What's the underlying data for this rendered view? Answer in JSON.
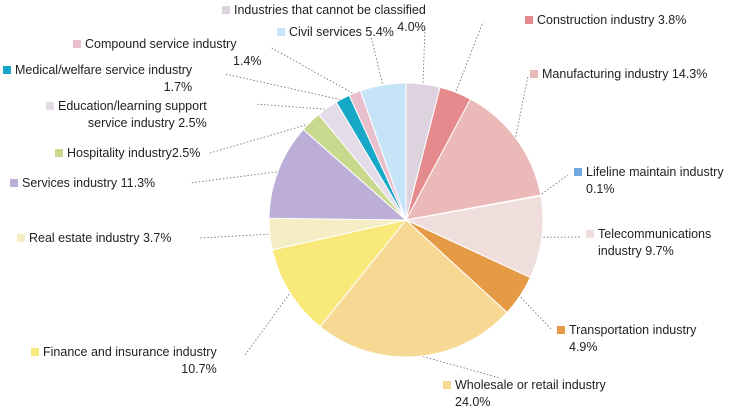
{
  "chart_data": {
    "type": "pie",
    "title": "",
    "slices": [
      {
        "label": "Industries that cannot be classified",
        "percent_label": "4.0%",
        "value": 4.0,
        "color": "#ddd3df"
      },
      {
        "label": "Construction industry",
        "percent_label": "3.8%",
        "value": 3.8,
        "color": "#e58b8d"
      },
      {
        "label": "Manufacturing industry",
        "percent_label": "14.3%",
        "value": 14.3,
        "color": "#ebbab8"
      },
      {
        "label": "Lifeline maintain industry",
        "percent_label": "0.1%",
        "value": 0.1,
        "color": "#6ea8de"
      },
      {
        "label": "Telecommunications industry",
        "percent_label": "9.7%",
        "value": 9.7,
        "color": "#f0dedd"
      },
      {
        "label": "Transportation industry",
        "percent_label": "4.9%",
        "value": 4.9,
        "color": "#e59b46"
      },
      {
        "label": "Wholesale or retail industry",
        "percent_label": "24.0%",
        "value": 24.0,
        "color": "#f7d994"
      },
      {
        "label": "Finance and insurance industry",
        "percent_label": "10.7%",
        "value": 10.7,
        "color": "#f9e87a"
      },
      {
        "label": "Real estate industry",
        "percent_label": "3.7%",
        "value": 3.7,
        "color": "#f5eec4"
      },
      {
        "label": "Services industry",
        "percent_label": "11.3%",
        "value": 11.3,
        "color": "#bcaed6"
      },
      {
        "label": "Hospitality industry",
        "percent_label": "2.5%",
        "value": 2.5,
        "color": "#c8d88c"
      },
      {
        "label": "Education/learning support service industry",
        "percent_label": "2.5%",
        "value": 2.5,
        "color": "#e4dce8"
      },
      {
        "label": "Medical/welfare service industry",
        "percent_label": "1.7%",
        "value": 1.7,
        "color": "#17a8c8"
      },
      {
        "label": "Compound service industry",
        "percent_label": "1.4%",
        "value": 1.4,
        "color": "#e9bfcd"
      },
      {
        "label": "Civil services",
        "percent_label": "5.4%",
        "value": 5.4,
        "color": "#c6e4f7"
      }
    ],
    "labels": {
      "unclassified": {
        "text": "Industries that cannot be classified",
        "pct": "4.0%"
      },
      "construction": {
        "text": "Construction industry 3.8%"
      },
      "manufacturing": {
        "text": "Manufacturing industry 14.3%"
      },
      "lifeline": {
        "text": "Lifeline maintain industry",
        "pct": "0.1%"
      },
      "telecom": {
        "line1": "Telecommunications",
        "line2": "industry  9.7%"
      },
      "transport": {
        "text": "Transportation industry",
        "pct": "4.9%"
      },
      "wholesale": {
        "text": "Wholesale or retail industry",
        "pct": "24.0%"
      },
      "finance": {
        "text": "Finance and insurance industry",
        "pct": "10.7%"
      },
      "realestate": {
        "text": "Real estate industry 3.7%"
      },
      "services": {
        "text": "Services industry 11.3%"
      },
      "hospitality": {
        "text": "Hospitality industry2.5%"
      },
      "education": {
        "line1": "Education/learning support",
        "line2": "service industry 2.5%"
      },
      "medical": {
        "text": "Medical/welfare service industry",
        "pct": "1.7%"
      },
      "compound": {
        "text": "Compound service industry",
        "pct": "1.4%"
      },
      "civil": {
        "text": "Civil services 5.4%"
      }
    }
  }
}
